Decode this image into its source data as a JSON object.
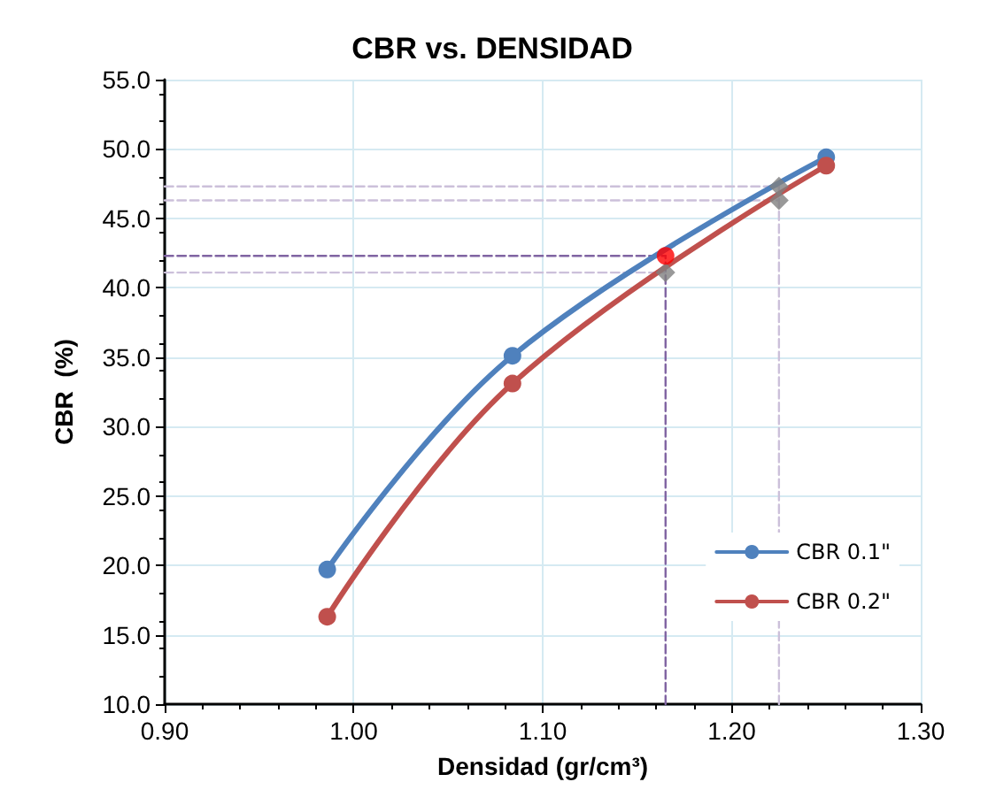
{
  "chart_data": {
    "type": "line",
    "title": "CBR vs. DENSIDAD",
    "xlabel": "Densidad (gr/cm³)",
    "ylabel": "CBR  (%)",
    "xlim": [
      0.9,
      1.3
    ],
    "xticks": [
      {
        "value": 0.9,
        "label": "0.90"
      },
      {
        "value": 1.0,
        "label": "1.00"
      },
      {
        "value": 1.1,
        "label": "1.10"
      },
      {
        "value": 1.2,
        "label": "1.20"
      },
      {
        "value": 1.3,
        "label": "1.30"
      }
    ],
    "ylim": [
      10,
      55
    ],
    "yticks": [
      {
        "value": 10,
        "label": "10.0"
      },
      {
        "value": 15,
        "label": "15.0"
      },
      {
        "value": 20,
        "label": "20.0"
      },
      {
        "value": 25,
        "label": "25.0"
      },
      {
        "value": 30,
        "label": "30.0"
      },
      {
        "value": 35,
        "label": "35.0"
      },
      {
        "value": 40,
        "label": "40.0"
      },
      {
        "value": 45,
        "label": "45.0"
      },
      {
        "value": 50,
        "label": "50.0"
      },
      {
        "value": 55,
        "label": "55.0"
      }
    ],
    "grid": true,
    "legend": "bottom right",
    "marker": "circle",
    "line_style": "solid",
    "series": [
      {
        "type": "line",
        "line_style": "dashed",
        "marker": "none",
        "color": "#8064a2",
        "x": [
          0.9,
          1.165
        ],
        "values": [
          42.3,
          42.3
        ]
      },
      {
        "type": "line",
        "line_style": "dashed",
        "marker": "none",
        "color": "#8064a2",
        "x": [
          1.165,
          1.165
        ],
        "values": [
          10,
          42.3
        ]
      },
      {
        "type": "line",
        "line_style": "dashed",
        "marker": "none",
        "color": "#ccc0da",
        "x": [
          0.9,
          1.165
        ],
        "values": [
          41.1,
          41.1
        ]
      },
      {
        "type": "line",
        "line_style": "dashed",
        "marker": "none",
        "color": "#ccc0da",
        "x": [
          0.9,
          1.225
        ],
        "values": [
          47.3,
          47.3
        ]
      },
      {
        "type": "line",
        "line_style": "dashed",
        "marker": "none",
        "color": "#ccc0da",
        "x": [
          0.9,
          1.225
        ],
        "values": [
          46.3,
          46.3
        ]
      },
      {
        "type": "line",
        "line_style": "dashed",
        "marker": "none",
        "color": "#ccc0da",
        "x": [
          1.225,
          1.225
        ],
        "values": [
          10,
          47.3
        ]
      },
      {
        "name": "CBR 0.1\"",
        "color": "#4f81bd",
        "x": [
          0.986,
          1.084,
          1.25
        ],
        "values": [
          19.7,
          35.1,
          49.4
        ]
      },
      {
        "name": "CBR 0.2\"",
        "color": "#c0504d",
        "x": [
          0.986,
          1.084,
          1.25
        ],
        "values": [
          16.3,
          33.1,
          48.8
        ]
      },
      {
        "type": "scatter",
        "marker": "diamond",
        "color": "#808080",
        "x": [
          1.165,
          1.225,
          1.225
        ],
        "values": [
          41.1,
          47.3,
          46.3
        ]
      },
      {
        "type": "scatter",
        "marker": "circle",
        "color": "#ff0000",
        "x": [
          1.165
        ],
        "values": [
          42.3
        ]
      }
    ]
  }
}
